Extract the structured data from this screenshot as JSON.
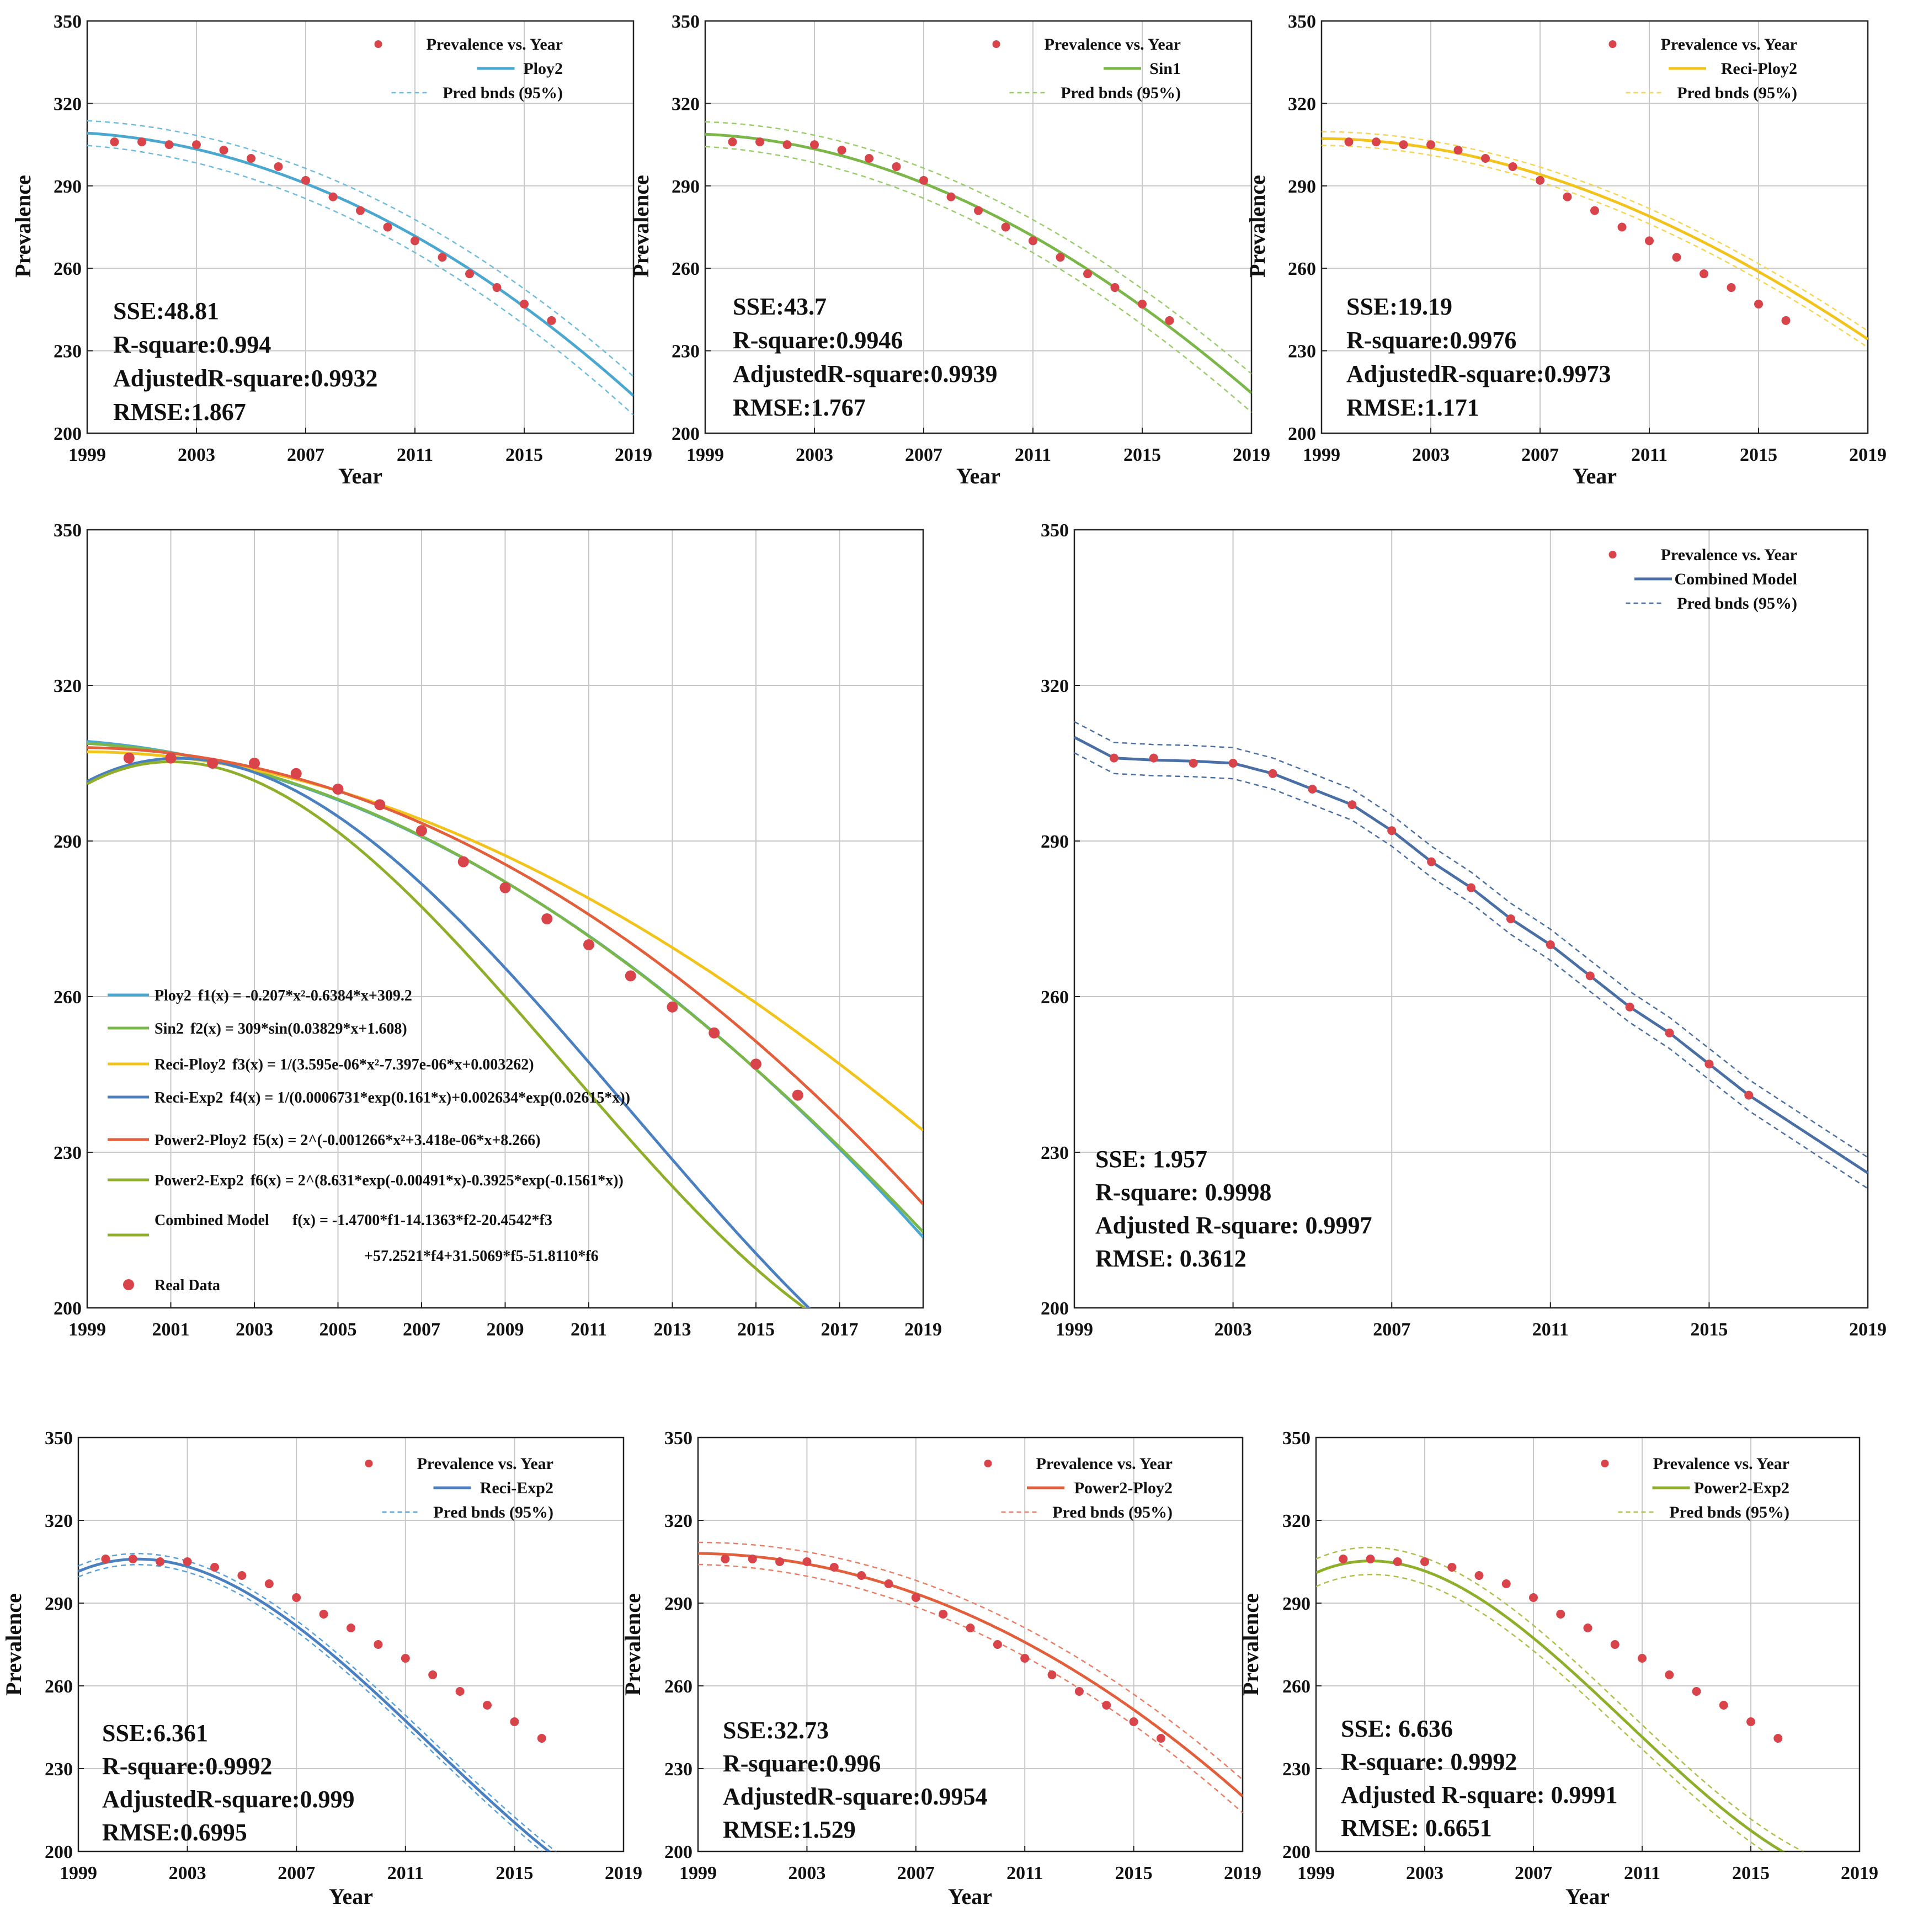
{
  "colors": {
    "points": "#d9444a",
    "grid": "#c8c8c8",
    "axis": "#222222"
  },
  "years": [
    2000,
    2001,
    2002,
    2003,
    2004,
    2005,
    2006,
    2007,
    2008,
    2009,
    2010,
    2011,
    2012,
    2013,
    2014,
    2015,
    2016
  ],
  "prevalence": [
    306,
    306,
    305,
    305,
    303,
    300,
    297,
    292,
    286,
    281,
    275,
    270,
    264,
    258,
    253,
    247,
    241
  ],
  "chart_data": [
    {
      "id": "ploy2",
      "type": "scatter",
      "xlabel": "Year",
      "ylabel": "Prevalence",
      "xlim": [
        1999,
        2019
      ],
      "ylim": [
        200,
        350
      ],
      "xticks": [
        "1999",
        "2003",
        "2007",
        "2011",
        "2015",
        "2019"
      ],
      "yticks": [
        "200",
        "230",
        "260",
        "290",
        "320",
        "350"
      ],
      "fit_color": "#4aa8d0",
      "band_color": "#6fbcdc",
      "fit": {
        "kind": "poly2",
        "a": -0.207,
        "b": -0.6384,
        "c": 309.2
      },
      "band_halfwidth": [
        4.5,
        7
      ],
      "legend": [
        "Prevalence vs. Year",
        "Ploy2",
        "Pred bnds (95%)"
      ],
      "stats": [
        "SSE:48.81",
        "R-square:0.994",
        "AdjustedR-square:0.9932",
        "RMSE:1.867"
      ]
    },
    {
      "id": "sin1",
      "type": "scatter",
      "xlabel": "Year",
      "ylabel": "Prevalence",
      "xlim": [
        1999,
        2019
      ],
      "ylim": [
        200,
        350
      ],
      "xticks": [
        "1999",
        "2003",
        "2007",
        "2011",
        "2015",
        "2019"
      ],
      "yticks": [
        "200",
        "230",
        "260",
        "290",
        "320",
        "350"
      ],
      "fit_color": "#7ab648",
      "band_color": "#9acd6a",
      "fit": {
        "kind": "sin",
        "a": 309,
        "b": 0.03829,
        "c": 1.608
      },
      "band_halfwidth": [
        4.5,
        7
      ],
      "legend": [
        "Prevalence vs. Year",
        "Sin1",
        "Pred bnds (95%)"
      ],
      "stats": [
        "SSE:43.7",
        "R-square:0.9946",
        "AdjustedR-square:0.9939",
        "RMSE:1.767"
      ]
    },
    {
      "id": "reciploy2",
      "type": "scatter",
      "xlabel": "Year",
      "ylabel": "Prevalence",
      "xlim": [
        1999,
        2019
      ],
      "ylim": [
        200,
        350
      ],
      "xticks": [
        "1999",
        "2003",
        "2007",
        "2011",
        "2015",
        "2019"
      ],
      "yticks": [
        "200",
        "230",
        "260",
        "290",
        "320",
        "350"
      ],
      "fit_color": "#f2c31b",
      "band_color": "#f5d552",
      "fit": {
        "kind": "reciploy2"
      },
      "band_halfwidth": [
        2.5,
        3
      ],
      "legend": [
        "Prevalence vs. Year",
        "Reci-Ploy2",
        "Pred bnds (95%)"
      ],
      "stats": [
        "SSE:19.19",
        "R-square:0.9976",
        "AdjustedR-square:0.9973",
        "RMSE:1.171"
      ]
    },
    {
      "id": "comparison",
      "type": "line",
      "xlim": [
        1999,
        2019
      ],
      "ylim": [
        200,
        350
      ],
      "xticks": [
        "1999",
        "2001",
        "2003",
        "2005",
        "2007",
        "2009",
        "2011",
        "2013",
        "2015",
        "2017",
        "2019"
      ],
      "yticks": [
        "200",
        "230",
        "260",
        "290",
        "320",
        "350"
      ],
      "series": [
        {
          "name": "Ploy2",
          "formula": "f1(x) = -0.207*x²-0.6384*x+309.2",
          "color": "#4aa8d0",
          "fit": {
            "kind": "poly2"
          }
        },
        {
          "name": "Sin2",
          "formula": "f2(x) = 309*sin(0.03829*x+1.608)",
          "color": "#7ab648",
          "fit": {
            "kind": "sin"
          }
        },
        {
          "name": "Reci-Ploy2",
          "formula": "f3(x) = 1/(3.595e-06*x²-7.397e-06*x+0.003262)",
          "color": "#f2c31b",
          "fit": {
            "kind": "reciploy2"
          }
        },
        {
          "name": "Reci-Exp2",
          "formula": "f4(x) = 1/(0.0006731*exp(0.161*x)+0.002634*exp(0.02615*x))",
          "color": "#4a7fc0",
          "fit": {
            "kind": "reciexp2"
          }
        },
        {
          "name": "Power2-Ploy2",
          "formula": "f5(x) = 2^(-0.001266*x²+3.418e-06*x+8.266)",
          "color": "#e35f3c",
          "fit": {
            "kind": "power2ploy2"
          }
        },
        {
          "name": "Power2-Exp2",
          "formula": "f6(x) = 2^(8.631*exp(-0.00491*x)-0.3925*exp(-0.1561*x))",
          "color": "#8fae2a",
          "fit": {
            "kind": "power2exp2"
          }
        }
      ],
      "combined_label": "Combined Model",
      "combined_formula_1": "f(x) = -1.4700*f1-14.1363*f2-20.4542*f3",
      "combined_formula_2": "+57.2521*f4+31.5069*f5-51.8110*f6",
      "real_data_label": "Real Data"
    },
    {
      "id": "combined",
      "type": "scatter",
      "xlim": [
        1999,
        2019
      ],
      "ylim": [
        200,
        350
      ],
      "xticks": [
        "1999",
        "2003",
        "2007",
        "2011",
        "2015",
        "2019"
      ],
      "yticks": [
        "200",
        "230",
        "260",
        "290",
        "320",
        "350"
      ],
      "fit_color": "#4a6fa5",
      "band_color": "#4a6fa5",
      "fit": {
        "kind": "combined"
      },
      "band_halfwidth": [
        3,
        3
      ],
      "legend": [
        "Prevalence vs. Year",
        "Combined Model",
        "Pred bnds (95%)"
      ],
      "stats": [
        "SSE: 1.957",
        "R-square: 0.9998",
        "Adjusted R-square: 0.9997",
        "RMSE: 0.3612"
      ]
    },
    {
      "id": "reciexp2",
      "type": "scatter",
      "xlabel": "Year",
      "ylabel": "Prevalence",
      "xlim": [
        1999,
        2019
      ],
      "ylim": [
        200,
        350
      ],
      "xticks": [
        "1999",
        "2003",
        "2007",
        "2011",
        "2015",
        "2019"
      ],
      "yticks": [
        "200",
        "230",
        "260",
        "290",
        "320",
        "350"
      ],
      "fit_color": "#4a7fc0",
      "band_color": "#5aa0d8",
      "fit": {
        "kind": "reciexp2"
      },
      "band_halfwidth": [
        2,
        2
      ],
      "legend": [
        "Prevalence vs. Year",
        "Reci-Exp2",
        "Pred bnds (95%)"
      ],
      "stats": [
        "SSE:6.361",
        "R-square:0.9992",
        "AdjustedR-square:0.999",
        "RMSE:0.6995"
      ]
    },
    {
      "id": "power2ploy2",
      "type": "scatter",
      "xlabel": "Year",
      "ylabel": "Prevalence",
      "xlim": [
        1999,
        2019
      ],
      "ylim": [
        200,
        350
      ],
      "xticks": [
        "1999",
        "2003",
        "2007",
        "2011",
        "2015",
        "2019"
      ],
      "yticks": [
        "200",
        "230",
        "260",
        "290",
        "320",
        "350"
      ],
      "fit_color": "#e35f3c",
      "band_color": "#ea7e63",
      "fit": {
        "kind": "power2ploy2"
      },
      "band_halfwidth": [
        4,
        6
      ],
      "legend": [
        "Prevalence vs. Year",
        "Power2-Ploy2",
        "Pred bnds (95%)"
      ],
      "stats": [
        "SSE:32.73",
        "R-square:0.996",
        "AdjustedR-square:0.9954",
        "RMSE:1.529"
      ]
    },
    {
      "id": "power2exp2",
      "type": "scatter",
      "xlabel": "Year",
      "ylabel": "Prevalence",
      "xlim": [
        1999,
        2019
      ],
      "ylim": [
        200,
        350
      ],
      "xticks": [
        "1999",
        "2003",
        "2007",
        "2011",
        "2015",
        "2019"
      ],
      "yticks": [
        "200",
        "230",
        "260",
        "290",
        "320",
        "350"
      ],
      "fit_color": "#8fae2a",
      "band_color": "#a8c24a",
      "fit": {
        "kind": "power2exp2"
      },
      "band_halfwidth": [
        5,
        4
      ],
      "legend": [
        "Prevalence vs. Year",
        "Power2-Exp2",
        "Pred bnds (95%)"
      ],
      "stats": [
        "SSE: 6.636",
        "R-square: 0.9992",
        "Adjusted R-square: 0.9991",
        "RMSE: 0.6651"
      ]
    }
  ]
}
